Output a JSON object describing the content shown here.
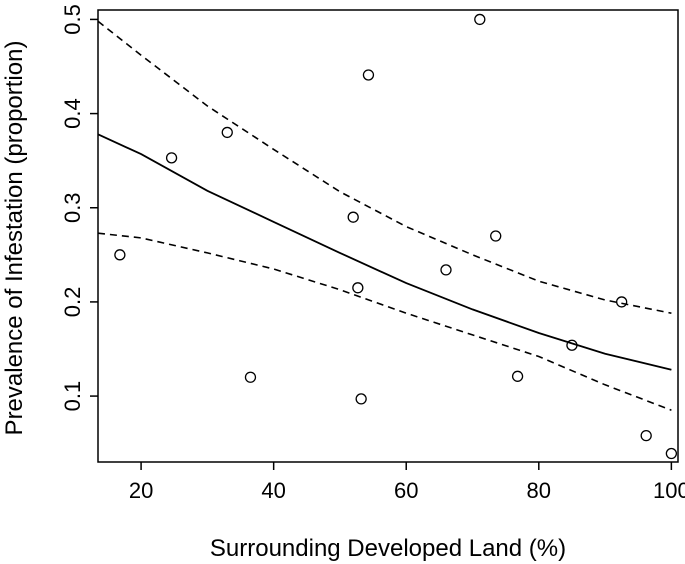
{
  "chart_data": {
    "type": "scatter",
    "xlabel": "Surrounding Developed Land (%)",
    "ylabel": "Prevalence of Infestation (proportion)",
    "xlim": [
      13.5,
      101
    ],
    "ylim": [
      0.03,
      0.51
    ],
    "xticks": [
      20,
      40,
      60,
      80,
      100
    ],
    "yticks": [
      0.1,
      0.2,
      0.3,
      0.4,
      0.5
    ],
    "xtick_labels": [
      "20",
      "40",
      "60",
      "80",
      "100"
    ],
    "ytick_labels": [
      "0.1",
      "0.2",
      "0.3",
      "0.4",
      "0.5"
    ],
    "grid": false,
    "points": {
      "x": [
        16.8,
        24.6,
        33.0,
        36.5,
        52.0,
        52.7,
        53.2,
        54.3,
        66.0,
        71.1,
        73.5,
        76.8,
        85.0,
        92.5,
        96.2,
        100.0
      ],
      "y": [
        0.25,
        0.353,
        0.38,
        0.12,
        0.29,
        0.215,
        0.097,
        0.441,
        0.234,
        0.5,
        0.27,
        0.121,
        0.154,
        0.2,
        0.058,
        0.039
      ]
    },
    "fit": {
      "x": [
        13.5,
        20,
        30,
        40,
        50,
        60,
        70,
        80,
        90,
        100
      ],
      "y": [
        0.378,
        0.357,
        0.318,
        0.285,
        0.252,
        0.22,
        0.192,
        0.167,
        0.145,
        0.128
      ]
    },
    "upper_ci": {
      "x": [
        13.5,
        20,
        30,
        40,
        50,
        60,
        70,
        80,
        90,
        100
      ],
      "y": [
        0.498,
        0.462,
        0.408,
        0.362,
        0.317,
        0.28,
        0.25,
        0.222,
        0.202,
        0.188
      ]
    },
    "lower_ci": {
      "x": [
        13.5,
        20,
        30,
        40,
        50,
        60,
        70,
        80,
        90,
        100
      ],
      "y": [
        0.273,
        0.268,
        0.252,
        0.235,
        0.213,
        0.188,
        0.165,
        0.142,
        0.112,
        0.085
      ]
    }
  }
}
